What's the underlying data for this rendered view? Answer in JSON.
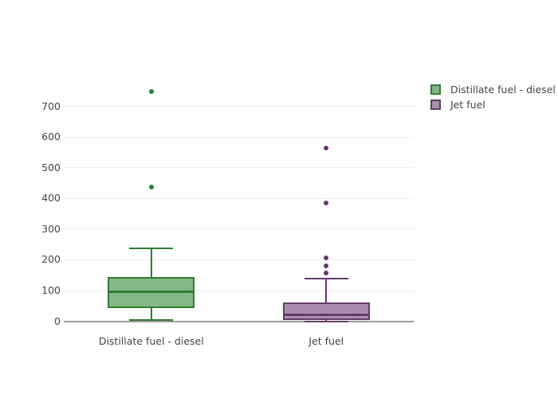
{
  "chart_data": {
    "type": "box",
    "title": "",
    "xlabel": "",
    "ylabel": "",
    "categories": [
      "Distillate fuel - diesel",
      "Jet fuel"
    ],
    "series": [
      {
        "name": "Distillate fuel - diesel",
        "line_color": "#2f7d32",
        "fill_color": "#84b786",
        "lower_whisker": 3,
        "q1": 44,
        "median": 95,
        "q3": 145,
        "upper_whisker": 237,
        "outliers": [
          437,
          748
        ]
      },
      {
        "name": "Jet fuel",
        "line_color": "#663a6b",
        "fill_color": "#a890ad",
        "lower_whisker": 0,
        "q1": 4,
        "median": 22,
        "q3": 60,
        "upper_whisker": 138,
        "outliers": [
          156,
          180,
          207,
          385,
          563
        ]
      }
    ],
    "yticks": [
      0,
      100,
      200,
      300,
      400,
      500,
      600,
      700
    ],
    "ylim": [
      -27,
      813
    ],
    "grid": true,
    "legend_position": "top-right"
  },
  "colors": {
    "grid": "#ececec",
    "axis_line": "#9b9b9b",
    "text": "#444444",
    "background": "#ffffff"
  }
}
